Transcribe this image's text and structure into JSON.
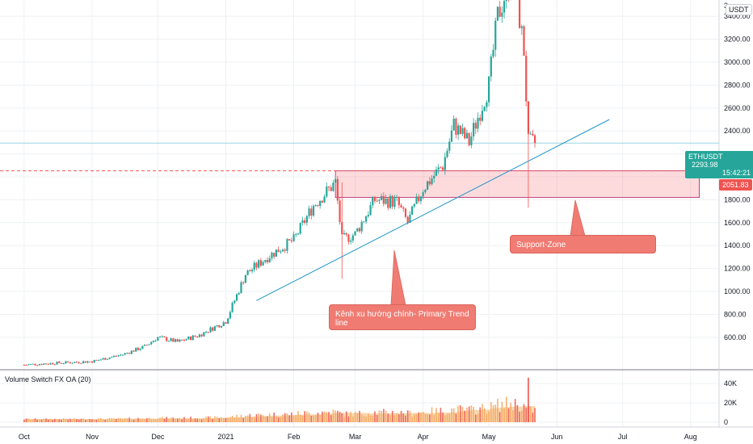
{
  "symbol": "ETHUSDT",
  "currency_label": "USDT",
  "last_price": "2293.98",
  "countdown": "15:42:21",
  "level_price": "2051.83",
  "top_tick_partial": "3",
  "volume_indicator_label": "Volume Switch FX OA (20)",
  "annotations": {
    "trend_line_note": "Kênh xu hướng chính- Primary Trend line",
    "support_zone_note": "Support-Zone"
  },
  "colors": {
    "up": "#26a69a",
    "down": "#ef5350",
    "trend_line": "#2196c7",
    "zone_fill": "rgba(242, 54, 69, 0.18)",
    "zone_border": "#b21d6a",
    "note_bg": "#f07b72",
    "volume_up": "#f5a65b",
    "volume_down": "#ef5350",
    "volume_ma_area": "#f7c88f"
  },
  "chart_data": {
    "type": "candlestick",
    "symbol": "ETHUSDT",
    "x_axis_labels": [
      "Oct",
      "Nov",
      "Dec",
      "2021",
      "Feb",
      "Mar",
      "Apr",
      "May",
      "Jun",
      "Jul",
      "Aug"
    ],
    "y_axis": {
      "ticks": [
        600,
        800,
        1000,
        1200,
        1400,
        1600,
        1800,
        2000,
        2200,
        2400,
        2600,
        2800,
        3000,
        3200,
        3400
      ],
      "tick_labels": [
        "600.00",
        "800.00",
        "1000.00",
        "1200.00",
        "1400.00",
        "1600.00",
        "1800.00",
        "",
        "",
        "2400.00",
        "2600.00",
        "2800.00",
        "3000.00",
        "3200.00",
        "3400.00"
      ],
      "range": [
        300,
        3600
      ]
    },
    "volume_axis": {
      "ticks": [
        0,
        20000,
        40000
      ],
      "tick_labels": [
        "0",
        "20K",
        "40K"
      ],
      "range": [
        0,
        50000
      ]
    },
    "weekly_anchor_closes": [
      [
        "2020-10-01",
        360
      ],
      [
        "2020-10-15",
        375
      ],
      [
        "2020-11-01",
        390
      ],
      [
        "2020-11-15",
        450
      ],
      [
        "2020-11-25",
        520
      ],
      [
        "2020-12-01",
        600
      ],
      [
        "2020-12-10",
        560
      ],
      [
        "2020-12-20",
        620
      ],
      [
        "2021-01-01",
        740
      ],
      [
        "2021-01-10",
        1150
      ],
      [
        "2021-01-20",
        1300
      ],
      [
        "2021-02-01",
        1450
      ],
      [
        "2021-02-10",
        1750
      ],
      [
        "2021-02-20",
        1950
      ],
      [
        "2021-02-23",
        1450
      ],
      [
        "2021-03-01",
        1500
      ],
      [
        "2021-03-10",
        1800
      ],
      [
        "2021-03-20",
        1780
      ],
      [
        "2021-03-25",
        1600
      ],
      [
        "2021-04-01",
        1900
      ],
      [
        "2021-04-10",
        2100
      ],
      [
        "2021-04-15",
        2450
      ],
      [
        "2021-04-22",
        2300
      ],
      [
        "2021-05-01",
        2800
      ],
      [
        "2021-05-05",
        3400
      ],
      [
        "2021-05-12",
        3800
      ],
      [
        "2021-05-17",
        3100
      ],
      [
        "2021-05-19",
        2300
      ],
      [
        "2021-05-22",
        2294
      ]
    ],
    "support_zone": {
      "from": "2021-02-20",
      "to": "2021-08-05",
      "low": 1820,
      "high": 2051.83
    },
    "horizontal_levels": [
      {
        "price": 2051.83,
        "style": "dashed",
        "color": "#ef5350"
      },
      {
        "price": 2293.98,
        "style": "solid",
        "color": "#26a69a"
      }
    ],
    "trend_line": {
      "start": [
        "2021-01-15",
        920
      ],
      "end": [
        "2021-06-25",
        2500
      ]
    },
    "grid": true,
    "legend": "none"
  }
}
